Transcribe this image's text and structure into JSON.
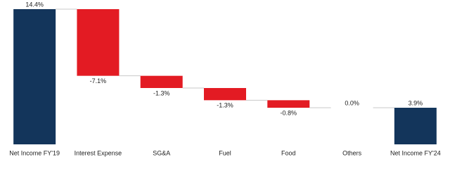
{
  "chart_data": {
    "type": "waterfall",
    "categories": [
      "Net Income FY'19",
      "Interest Expense",
      "SG&A",
      "Fuel",
      "Food",
      "Others",
      "Net Income FY'24"
    ],
    "values": [
      14.4,
      -7.1,
      -1.3,
      -1.3,
      -0.8,
      0.0,
      3.9
    ],
    "value_labels": [
      "14.4%",
      "-7.1%",
      "-1.3%",
      "-1.3%",
      "-0.8%",
      "0.0%",
      "3.9%"
    ],
    "total_color": "#13355b",
    "decrease_color": "#e31b23",
    "increase_color": "#e31b23"
  }
}
